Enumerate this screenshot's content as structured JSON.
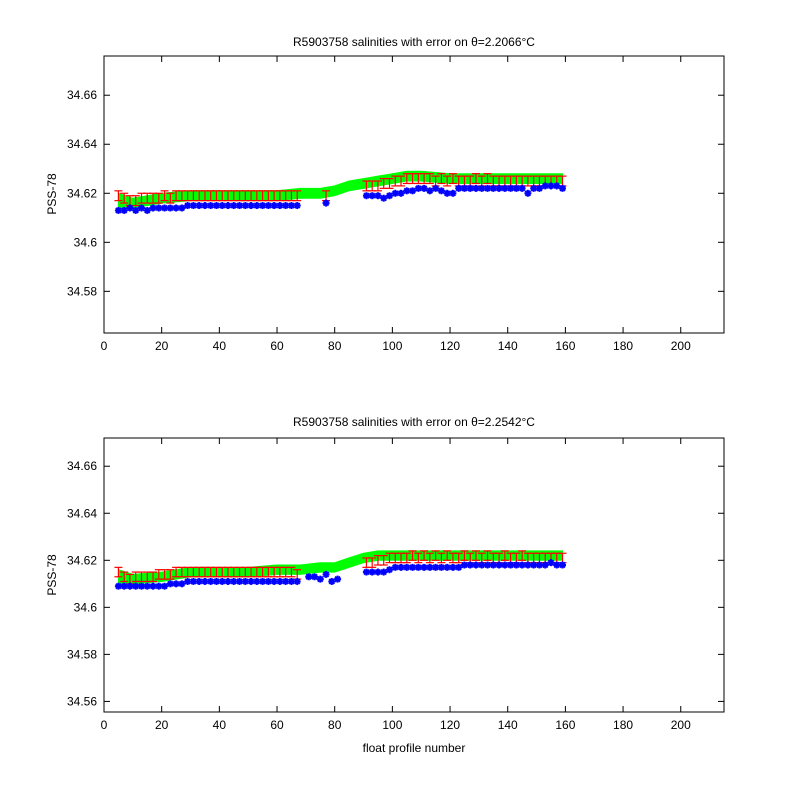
{
  "figure": {
    "background": "#ffffff",
    "xlabel": "float profile number"
  },
  "colors": {
    "green": "#00ff00",
    "red": "#ff0000",
    "blue": "#0000ff",
    "axis": "#000000"
  },
  "chart_data": [
    {
      "type": "scatter",
      "title": "R5903758 salinities with error on θ=2.2066°C",
      "ylabel": "PSS-78",
      "xlabel": "",
      "xlim": [
        0,
        215
      ],
      "ylim": [
        34.563,
        34.676
      ],
      "xticks": [
        0,
        20,
        40,
        60,
        80,
        100,
        120,
        140,
        160,
        180,
        200
      ],
      "xtick_labels": [
        "0",
        "20",
        "40",
        "60",
        "80",
        "100",
        "120",
        "140",
        "160",
        "180",
        "200"
      ],
      "yticks": [
        34.58,
        34.6,
        34.62,
        34.64,
        34.66
      ],
      "ytick_labels": [
        "34.58",
        "34.6",
        "34.62",
        "34.64",
        "34.66"
      ],
      "grid": false,
      "series": [
        {
          "color": "green",
          "style": "band",
          "x": [
            5,
            10,
            20,
            30,
            40,
            50,
            60,
            68,
            75,
            80,
            85,
            90,
            95,
            100,
            105,
            110,
            120,
            130,
            140,
            150,
            159
          ],
          "y": [
            34.617,
            34.616,
            34.618,
            34.619,
            34.619,
            34.619,
            34.619,
            34.62,
            34.62,
            34.621,
            34.623,
            34.624,
            34.625,
            34.626,
            34.627,
            34.627,
            34.626,
            34.626,
            34.626,
            34.626,
            34.626
          ],
          "half_width": [
            0.003,
            0.002,
            0.002,
            0.002,
            0.002,
            0.002,
            0.002,
            0.002,
            0.002,
            0.002,
            0.002,
            0.002,
            0.002,
            0.002,
            0.002,
            0.002,
            0.002,
            0.002,
            0.002,
            0.002,
            0.002
          ]
        },
        {
          "color": "red",
          "style": "errorbar",
          "x": [
            5,
            7,
            9,
            11,
            13,
            15,
            17,
            19,
            21,
            23,
            25,
            27,
            29,
            31,
            33,
            35,
            37,
            39,
            41,
            43,
            45,
            47,
            49,
            51,
            53,
            55,
            57,
            59,
            61,
            63,
            65,
            67,
            77,
            91,
            93,
            95,
            97,
            99,
            101,
            103,
            105,
            107,
            109,
            111,
            113,
            115,
            117,
            119,
            121,
            123,
            125,
            127,
            129,
            131,
            133,
            135,
            137,
            139,
            141,
            143,
            145,
            147,
            149,
            151,
            153,
            155,
            157,
            159
          ],
          "y": [
            34.619,
            34.618,
            34.617,
            34.617,
            34.618,
            34.618,
            34.618,
            34.618,
            34.619,
            34.618,
            34.619,
            34.619,
            34.619,
            34.619,
            34.619,
            34.619,
            34.619,
            34.619,
            34.619,
            34.619,
            34.619,
            34.619,
            34.619,
            34.619,
            34.619,
            34.619,
            34.619,
            34.619,
            34.619,
            34.619,
            34.619,
            34.619,
            34.619,
            34.623,
            34.623,
            34.623,
            34.624,
            34.624,
            34.625,
            34.625,
            34.626,
            34.626,
            34.626,
            34.626,
            34.626,
            34.625,
            34.626,
            34.625,
            34.626,
            34.625,
            34.625,
            34.625,
            34.626,
            34.625,
            34.626,
            34.625,
            34.625,
            34.625,
            34.625,
            34.625,
            34.625,
            34.625,
            34.625,
            34.625,
            34.625,
            34.625,
            34.625,
            34.625
          ],
          "error": 0.002
        },
        {
          "color": "blue",
          "style": "marker",
          "x": [
            5,
            7,
            9,
            11,
            13,
            15,
            17,
            19,
            21,
            23,
            25,
            27,
            29,
            31,
            33,
            35,
            37,
            39,
            41,
            43,
            45,
            47,
            49,
            51,
            53,
            55,
            57,
            59,
            61,
            63,
            65,
            67,
            77,
            91,
            93,
            95,
            97,
            99,
            101,
            103,
            105,
            107,
            109,
            111,
            113,
            115,
            117,
            119,
            121,
            123,
            125,
            127,
            129,
            131,
            133,
            135,
            137,
            139,
            141,
            143,
            145,
            147,
            149,
            151,
            153,
            155,
            157,
            159
          ],
          "y": [
            34.613,
            34.613,
            34.614,
            34.613,
            34.614,
            34.613,
            34.614,
            34.614,
            34.614,
            34.614,
            34.614,
            34.614,
            34.615,
            34.615,
            34.615,
            34.615,
            34.615,
            34.615,
            34.615,
            34.615,
            34.615,
            34.615,
            34.615,
            34.615,
            34.615,
            34.615,
            34.615,
            34.615,
            34.615,
            34.615,
            34.615,
            34.615,
            34.616,
            34.619,
            34.619,
            34.619,
            34.618,
            34.619,
            34.62,
            34.62,
            34.621,
            34.621,
            34.622,
            34.622,
            34.621,
            34.622,
            34.621,
            34.62,
            34.62,
            34.622,
            34.622,
            34.622,
            34.622,
            34.622,
            34.622,
            34.622,
            34.622,
            34.622,
            34.622,
            34.622,
            34.622,
            34.62,
            34.622,
            34.622,
            34.623,
            34.623,
            34.623,
            34.622
          ]
        }
      ]
    },
    {
      "type": "scatter",
      "title": "R5903758 salinities with error on θ=2.2542°C",
      "ylabel": "PSS-78",
      "xlabel": "float profile number",
      "xlim": [
        0,
        215
      ],
      "ylim": [
        34.5555,
        34.672
      ],
      "xticks": [
        0,
        20,
        40,
        60,
        80,
        100,
        120,
        140,
        160,
        180,
        200
      ],
      "xtick_labels": [
        "0",
        "20",
        "40",
        "60",
        "80",
        "100",
        "120",
        "140",
        "160",
        "180",
        "200"
      ],
      "yticks": [
        34.56,
        34.58,
        34.6,
        34.62,
        34.64,
        34.66
      ],
      "ytick_labels": [
        "34.56",
        "34.58",
        "34.6",
        "34.62",
        "34.64",
        "34.66"
      ],
      "grid": false,
      "series": [
        {
          "color": "green",
          "style": "band",
          "x": [
            5,
            10,
            20,
            30,
            40,
            50,
            60,
            68,
            75,
            80,
            85,
            90,
            95,
            100,
            105,
            110,
            120,
            130,
            140,
            150,
            159
          ],
          "y": [
            34.613,
            34.612,
            34.613,
            34.615,
            34.615,
            34.615,
            34.616,
            34.616,
            34.617,
            34.617,
            34.619,
            34.621,
            34.622,
            34.622,
            34.622,
            34.622,
            34.622,
            34.622,
            34.622,
            34.622,
            34.622
          ],
          "half_width": [
            0.003,
            0.002,
            0.002,
            0.002,
            0.002,
            0.002,
            0.002,
            0.002,
            0.002,
            0.002,
            0.002,
            0.002,
            0.002,
            0.002,
            0.002,
            0.002,
            0.002,
            0.002,
            0.002,
            0.002,
            0.002
          ]
        },
        {
          "color": "red",
          "style": "errorbar",
          "x": [
            5,
            7,
            9,
            11,
            13,
            15,
            17,
            19,
            21,
            23,
            25,
            27,
            29,
            31,
            33,
            35,
            37,
            39,
            41,
            43,
            45,
            47,
            49,
            51,
            53,
            55,
            57,
            59,
            61,
            63,
            65,
            67,
            91,
            93,
            95,
            97,
            99,
            101,
            103,
            105,
            107,
            109,
            111,
            113,
            115,
            117,
            119,
            121,
            123,
            125,
            127,
            129,
            131,
            133,
            135,
            137,
            139,
            141,
            143,
            145,
            147,
            149,
            151,
            153,
            155,
            157,
            159
          ],
          "y": [
            34.615,
            34.613,
            34.612,
            34.613,
            34.613,
            34.613,
            34.613,
            34.614,
            34.614,
            34.614,
            34.615,
            34.615,
            34.615,
            34.615,
            34.615,
            34.615,
            34.615,
            34.615,
            34.615,
            34.615,
            34.615,
            34.615,
            34.615,
            34.615,
            34.615,
            34.615,
            34.615,
            34.615,
            34.615,
            34.615,
            34.615,
            34.614,
            34.619,
            34.619,
            34.62,
            34.62,
            34.621,
            34.621,
            34.621,
            34.621,
            34.622,
            34.621,
            34.622,
            34.621,
            34.622,
            34.621,
            34.622,
            34.621,
            34.621,
            34.622,
            34.621,
            34.622,
            34.621,
            34.622,
            34.621,
            34.621,
            34.622,
            34.621,
            34.621,
            34.622,
            34.621,
            34.621,
            34.621,
            34.621,
            34.621,
            34.621,
            34.621
          ],
          "error": 0.002
        },
        {
          "color": "blue",
          "style": "marker",
          "x": [
            5,
            7,
            9,
            11,
            13,
            15,
            17,
            19,
            21,
            23,
            25,
            27,
            29,
            31,
            33,
            35,
            37,
            39,
            41,
            43,
            45,
            47,
            49,
            51,
            53,
            55,
            57,
            59,
            61,
            63,
            65,
            67,
            71,
            73,
            75,
            77,
            79,
            81,
            91,
            93,
            95,
            97,
            99,
            101,
            103,
            105,
            107,
            109,
            111,
            113,
            115,
            117,
            119,
            121,
            123,
            125,
            127,
            129,
            131,
            133,
            135,
            137,
            139,
            141,
            143,
            145,
            147,
            149,
            151,
            153,
            155,
            157,
            159
          ],
          "y": [
            34.609,
            34.609,
            34.609,
            34.609,
            34.609,
            34.609,
            34.609,
            34.609,
            34.609,
            34.61,
            34.61,
            34.61,
            34.611,
            34.611,
            34.611,
            34.611,
            34.611,
            34.611,
            34.611,
            34.611,
            34.611,
            34.611,
            34.611,
            34.611,
            34.611,
            34.611,
            34.611,
            34.611,
            34.611,
            34.611,
            34.611,
            34.611,
            34.613,
            34.613,
            34.612,
            34.614,
            34.611,
            34.612,
            34.615,
            34.615,
            34.615,
            34.615,
            34.616,
            34.617,
            34.617,
            34.617,
            34.617,
            34.617,
            34.617,
            34.617,
            34.617,
            34.617,
            34.617,
            34.617,
            34.617,
            34.618,
            34.618,
            34.618,
            34.618,
            34.618,
            34.618,
            34.618,
            34.618,
            34.618,
            34.618,
            34.618,
            34.618,
            34.618,
            34.618,
            34.618,
            34.619,
            34.618,
            34.618
          ]
        }
      ]
    }
  ]
}
